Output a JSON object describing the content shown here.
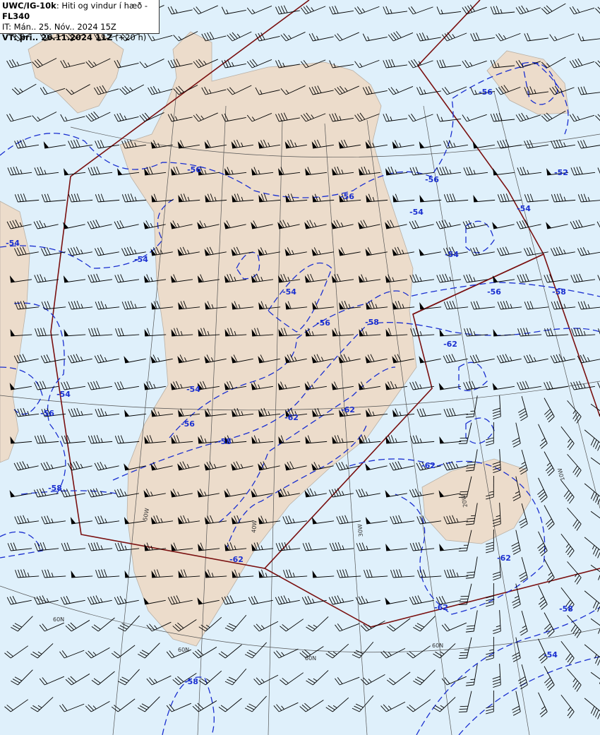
{
  "header": {
    "product": "UWC/IG-10k",
    "description": ": Hiti og vindur í hæð - ",
    "level": "FL340",
    "issue_time": "IT: Mán.. 25. Nóv.. 2024 15Z",
    "valid_prefix": "VT: þri.. 26.11.2024 11Z",
    "valid_offset": " (+20 h)"
  },
  "colors": {
    "sea": "#dff0fb",
    "land": "#ecdccb",
    "contour": "#1a2fd0",
    "fir_boundary": "#7a1010",
    "graticule": "#555555",
    "wind_barb": "#000000"
  },
  "graticule_labels": [
    "50W",
    "40W",
    "30W",
    "20W",
    "10W",
    "60N",
    "60N",
    "60N",
    "60N"
  ],
  "contours": {
    "units": "°C",
    "labels": [
      "-56",
      "-56",
      "-56",
      "-56",
      "-52",
      "-54",
      "-54",
      "-54",
      "-54",
      "-54",
      "-54",
      "-56",
      "-58",
      "-56",
      "-58",
      "-62",
      "-54",
      "-54",
      "-56",
      "-62",
      "-62",
      "-56",
      "-58",
      "-58",
      "-62",
      "-62",
      "-62",
      "-62",
      "-58",
      "-54",
      "-58"
    ]
  }
}
